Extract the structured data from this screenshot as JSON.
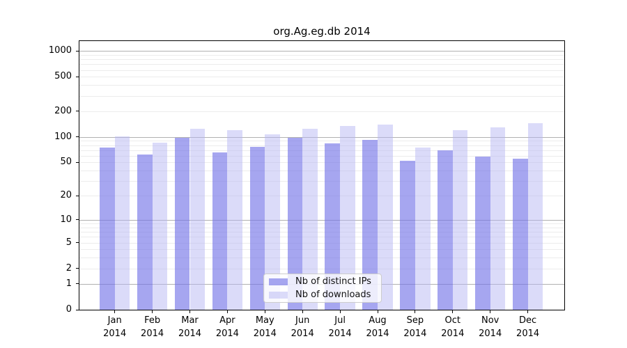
{
  "chart_data": {
    "type": "bar",
    "title": "org.Ag.eg.db 2014",
    "categories": [
      "Jan",
      "Feb",
      "Mar",
      "Apr",
      "May",
      "Jun",
      "Jul",
      "Aug",
      "Sep",
      "Oct",
      "Nov",
      "Dec"
    ],
    "category_year": "2014",
    "series": [
      {
        "name": "Nb of distinct IPs",
        "color": "#a6a6f1",
        "fill": "rgba(114,114,232,0.63)",
        "values": [
          75,
          62,
          97,
          66,
          77,
          97,
          84,
          92,
          52,
          70,
          59,
          55
        ]
      },
      {
        "name": "Nb of downloads",
        "color": "#dbdbf9",
        "fill": "rgba(180,180,243,0.48)",
        "values": [
          101,
          85,
          124,
          119,
          107,
          125,
          134,
          140,
          75,
          119,
          128,
          145
        ]
      }
    ],
    "xlabel": "",
    "ylabel": "",
    "yscale": "log1p",
    "yticks": [
      0,
      1,
      2,
      5,
      10,
      20,
      50,
      100,
      200,
      500,
      1000
    ],
    "ylim": [
      0,
      1300
    ],
    "grid": {
      "on": true,
      "minor_color": "#ececec",
      "major_color": "#b0b0b0",
      "major_lines_at": [
        1,
        10,
        100,
        1000
      ]
    },
    "legend": {
      "position": "bottom-center"
    },
    "axis_color": "#000000",
    "background": "#ffffff"
  }
}
